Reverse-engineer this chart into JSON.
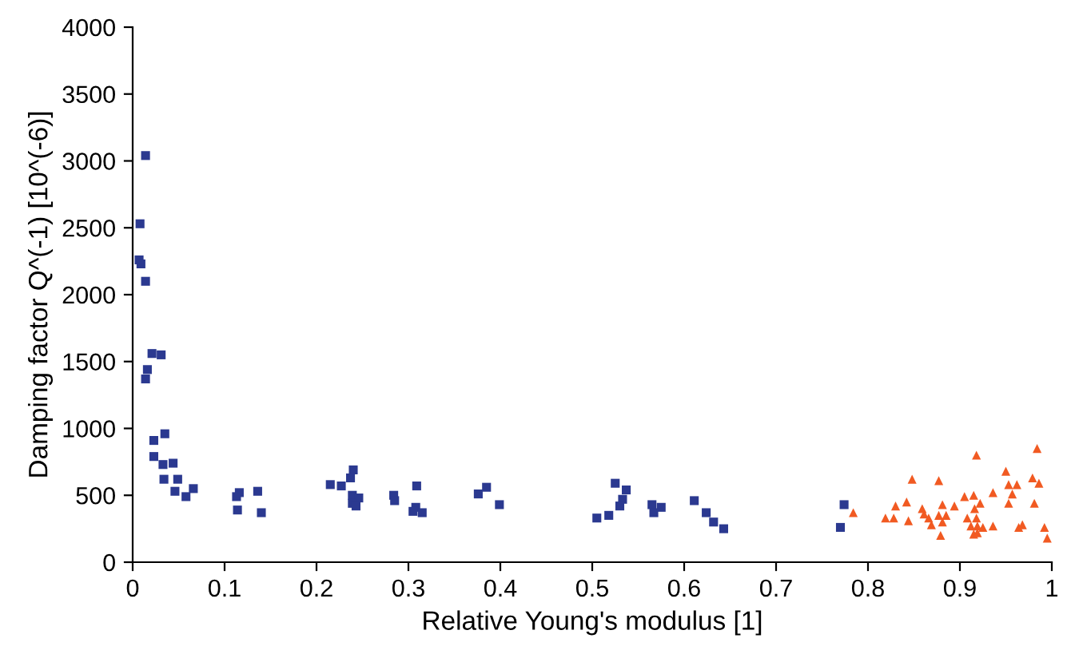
{
  "chart_data": {
    "type": "scatter",
    "xlabel": "Relative Young's modulus [1]",
    "ylabel": "Damping factor Q^(-1) [10^(-6)]",
    "xlim": [
      0,
      1
    ],
    "ylim": [
      0,
      4000
    ],
    "xticks": [
      0,
      0.1,
      0.2,
      0.3,
      0.4,
      0.5,
      0.6,
      0.7,
      0.8,
      0.9,
      1
    ],
    "yticks": [
      0,
      500,
      1000,
      1500,
      2000,
      2500,
      3000,
      3500,
      4000
    ],
    "grid": false,
    "legend": false,
    "series": [
      {
        "color": "#2b3990",
        "marker": "square",
        "x": [
          0.014,
          0.008,
          0.007,
          0.009,
          0.014,
          0.021,
          0.031,
          0.016,
          0.014,
          0.035,
          0.023,
          0.023,
          0.033,
          0.044,
          0.034,
          0.049,
          0.046,
          0.058,
          0.066,
          0.113,
          0.116,
          0.114,
          0.136,
          0.14,
          0.215,
          0.227,
          0.237,
          0.24,
          0.239,
          0.246,
          0.239,
          0.243,
          0.284,
          0.285,
          0.309,
          0.308,
          0.305,
          0.315,
          0.376,
          0.385,
          0.399,
          0.505,
          0.518,
          0.525,
          0.537,
          0.533,
          0.53,
          0.565,
          0.575,
          0.567,
          0.611,
          0.624,
          0.632,
          0.643,
          0.774,
          0.77
        ],
        "values": [
          3040,
          2530,
          2260,
          2230,
          2100,
          1560,
          1550,
          1440,
          1370,
          960,
          910,
          790,
          730,
          740,
          620,
          620,
          530,
          490,
          550,
          490,
          520,
          390,
          530,
          370,
          580,
          570,
          630,
          690,
          500,
          480,
          440,
          420,
          500,
          460,
          570,
          410,
          380,
          370,
          510,
          560,
          430,
          330,
          350,
          590,
          540,
          470,
          420,
          430,
          410,
          370,
          460,
          370,
          300,
          250,
          430,
          260
        ]
      },
      {
        "color": "#f15a22",
        "marker": "triangle",
        "x": [
          0.784,
          0.819,
          0.828,
          0.83,
          0.842,
          0.848,
          0.844,
          0.859,
          0.861,
          0.866,
          0.869,
          0.877,
          0.881,
          0.877,
          0.885,
          0.881,
          0.879,
          0.894,
          0.905,
          0.908,
          0.915,
          0.918,
          0.922,
          0.916,
          0.918,
          0.912,
          0.919,
          0.925,
          0.915,
          0.919,
          0.936,
          0.936,
          0.95,
          0.953,
          0.957,
          0.962,
          0.953,
          0.964,
          0.968,
          0.979,
          0.984,
          0.986,
          0.981,
          0.992,
          0.995
        ],
        "values": [
          370,
          330,
          330,
          420,
          450,
          620,
          310,
          400,
          360,
          330,
          280,
          610,
          430,
          350,
          350,
          300,
          200,
          420,
          490,
          330,
          500,
          800,
          440,
          400,
          330,
          270,
          270,
          260,
          210,
          220,
          520,
          270,
          680,
          580,
          510,
          580,
          440,
          260,
          280,
          630,
          850,
          590,
          440,
          260,
          180
        ]
      }
    ]
  }
}
